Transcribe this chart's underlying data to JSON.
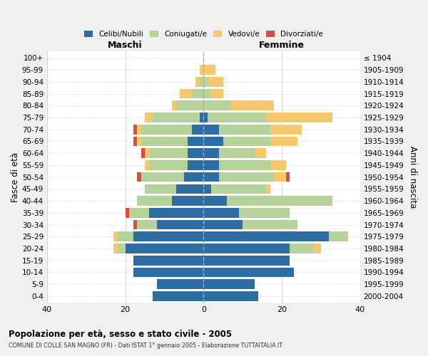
{
  "age_groups": [
    "0-4",
    "5-9",
    "10-14",
    "15-19",
    "20-24",
    "25-29",
    "30-34",
    "35-39",
    "40-44",
    "45-49",
    "50-54",
    "55-59",
    "60-64",
    "65-69",
    "70-74",
    "75-79",
    "80-84",
    "85-89",
    "90-94",
    "95-99",
    "100+"
  ],
  "birth_years": [
    "2000-2004",
    "1995-1999",
    "1990-1994",
    "1985-1989",
    "1980-1984",
    "1975-1979",
    "1970-1974",
    "1965-1969",
    "1960-1964",
    "1955-1959",
    "1950-1954",
    "1945-1949",
    "1940-1944",
    "1935-1939",
    "1930-1934",
    "1925-1929",
    "1920-1924",
    "1915-1919",
    "1910-1914",
    "1905-1909",
    "≤ 1904"
  ],
  "maschi": {
    "celibi": [
      13,
      12,
      18,
      18,
      20,
      18,
      12,
      14,
      8,
      7,
      5,
      4,
      4,
      4,
      3,
      1,
      0,
      0,
      0,
      0,
      0
    ],
    "coniugati": [
      0,
      0,
      0,
      0,
      2,
      4,
      5,
      5,
      9,
      8,
      11,
      10,
      10,
      12,
      13,
      12,
      7,
      3,
      1,
      0,
      0
    ],
    "vedovi": [
      0,
      0,
      0,
      0,
      1,
      1,
      0,
      0,
      0,
      0,
      0,
      1,
      1,
      1,
      1,
      2,
      1,
      3,
      1,
      1,
      0
    ],
    "divorziati": [
      0,
      0,
      0,
      0,
      0,
      0,
      1,
      1,
      0,
      0,
      1,
      0,
      1,
      1,
      1,
      0,
      0,
      0,
      0,
      0,
      0
    ]
  },
  "femmine": {
    "nubili": [
      14,
      13,
      23,
      22,
      22,
      32,
      10,
      9,
      6,
      2,
      4,
      4,
      4,
      5,
      4,
      1,
      0,
      0,
      0,
      0,
      0
    ],
    "coniugate": [
      0,
      0,
      0,
      0,
      6,
      5,
      14,
      13,
      27,
      14,
      14,
      13,
      9,
      12,
      13,
      15,
      7,
      2,
      1,
      0,
      0
    ],
    "vedove": [
      0,
      0,
      0,
      0,
      2,
      0,
      0,
      0,
      0,
      1,
      3,
      4,
      3,
      7,
      8,
      17,
      11,
      3,
      4,
      3,
      0
    ],
    "divorziate": [
      0,
      0,
      0,
      0,
      0,
      0,
      0,
      0,
      0,
      0,
      1,
      0,
      0,
      0,
      0,
      0,
      0,
      0,
      0,
      0,
      0
    ]
  },
  "colors": {
    "celibi": "#2e6da4",
    "coniugati": "#b5d29a",
    "vedovi": "#f5c86e",
    "divorziati": "#d94f3d"
  },
  "xlim": 40,
  "title": "Popolazione per età, sesso e stato civile - 2005",
  "subtitle": "COMUNE DI COLLE SAN MAGNO (FR) - Dati ISTAT 1° gennaio 2005 - Elaborazione TUTTAITALIA.IT",
  "ylabel_left": "Fasce di età",
  "ylabel_right": "Anni di nascita",
  "xlabel_left": "Maschi",
  "xlabel_right": "Femmine",
  "bg_color": "#f0f0f0",
  "plot_bg": "#ffffff"
}
